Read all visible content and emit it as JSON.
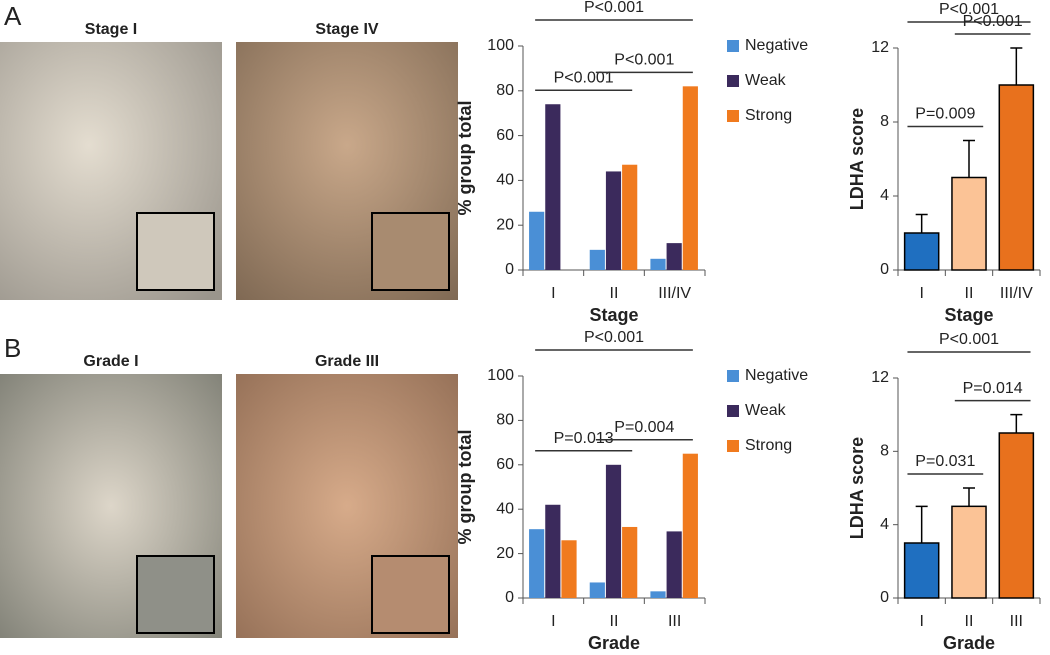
{
  "panels": [
    {
      "label": "A",
      "images": [
        "Stage I",
        "Stage IV"
      ]
    },
    {
      "label": "B",
      "images": [
        "Grade I",
        "Grade III"
      ]
    }
  ],
  "chart_data": [
    {
      "type": "bar",
      "ylabel": "% group total",
      "xlabel": "Stage",
      "categories": [
        "I",
        "II",
        "III/IV"
      ],
      "series": [
        {
          "name": "Negative",
          "color": "#4a8fd6",
          "values": [
            26,
            9,
            5
          ]
        },
        {
          "name": "Weak",
          "color": "#3b2a5c",
          "values": [
            74,
            44,
            12
          ]
        },
        {
          "name": "Strong",
          "color": "#f07a1e",
          "values": [
            0,
            47,
            82
          ]
        }
      ],
      "ylim": [
        0,
        100
      ],
      "yticks": [
        0,
        20,
        40,
        60,
        80,
        100
      ],
      "annotations": [
        {
          "text": "P<0.001",
          "span": [
            "I",
            "III/IV"
          ]
        },
        {
          "text": "P<0.001",
          "span": [
            "I",
            "II"
          ]
        },
        {
          "text": "P<0.001",
          "span": [
            "II",
            "III/IV"
          ]
        }
      ]
    },
    {
      "type": "bar",
      "ylabel": "LDHA score",
      "xlabel": "Stage",
      "categories": [
        "I",
        "II",
        "III/IV"
      ],
      "values": [
        2,
        5,
        10
      ],
      "errors": [
        1,
        2,
        2
      ],
      "colors": [
        "#1f6fc0",
        "#fbc396",
        "#e8711d"
      ],
      "ylim": [
        0,
        12
      ],
      "yticks": [
        0,
        4,
        8,
        12
      ],
      "annotations": [
        {
          "text": "P<0.001",
          "span": [
            "I",
            "III/IV"
          ]
        },
        {
          "text": "P=0.009",
          "span": [
            "I",
            "II"
          ]
        },
        {
          "text": "P<0.001",
          "span": [
            "II",
            "III/IV"
          ]
        }
      ]
    },
    {
      "type": "bar",
      "ylabel": "% group total",
      "xlabel": "Grade",
      "categories": [
        "I",
        "II",
        "III"
      ],
      "series": [
        {
          "name": "Negative",
          "color": "#4a8fd6",
          "values": [
            31,
            7,
            3
          ]
        },
        {
          "name": "Weak",
          "color": "#3b2a5c",
          "values": [
            42,
            60,
            30
          ]
        },
        {
          "name": "Strong",
          "color": "#f07a1e",
          "values": [
            26,
            32,
            65
          ]
        }
      ],
      "ylim": [
        0,
        100
      ],
      "yticks": [
        0,
        20,
        40,
        60,
        80,
        100
      ],
      "annotations": [
        {
          "text": "P<0.001",
          "span": [
            "I",
            "III"
          ]
        },
        {
          "text": "P=0.013",
          "span": [
            "I",
            "II"
          ]
        },
        {
          "text": "P=0.004",
          "span": [
            "II",
            "III"
          ]
        }
      ]
    },
    {
      "type": "bar",
      "ylabel": "LDHA score",
      "xlabel": "Grade",
      "categories": [
        "I",
        "II",
        "III"
      ],
      "values": [
        3,
        5,
        9
      ],
      "errors": [
        2,
        1,
        1
      ],
      "colors": [
        "#1f6fc0",
        "#fbc396",
        "#e8711d"
      ],
      "ylim": [
        0,
        12
      ],
      "yticks": [
        0,
        4,
        8,
        12
      ],
      "annotations": [
        {
          "text": "P<0.001",
          "span": [
            "I",
            "III"
          ]
        },
        {
          "text": "P=0.031",
          "span": [
            "I",
            "II"
          ]
        },
        {
          "text": "P=0.014",
          "span": [
            "II",
            "III"
          ]
        }
      ]
    }
  ]
}
